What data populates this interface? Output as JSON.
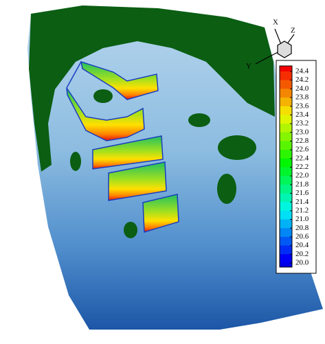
{
  "axes": {
    "x": "X",
    "y": "Y",
    "z": "Z"
  },
  "colorbar": {
    "labels": [
      "24.4",
      "24.2",
      "24.0",
      "23.8",
      "23.6",
      "23.4",
      "23.2",
      "23.0",
      "22.8",
      "22.6",
      "22.4",
      "22.2",
      "22.0",
      "21.8",
      "21.6",
      "21.4",
      "21.2",
      "21.0",
      "20.8",
      "20.6",
      "20.4",
      "20.2",
      "20.0"
    ]
  }
}
